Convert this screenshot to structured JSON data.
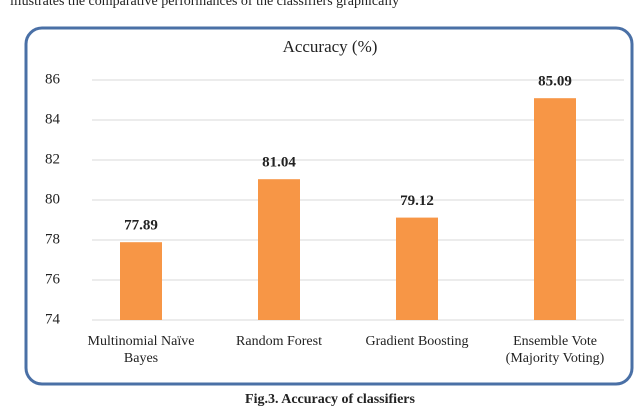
{
  "intro_text": "illustrates the comparative performances of the classifiers graphically",
  "chart_data": {
    "type": "bar",
    "title": "Accuracy (%)",
    "categories": [
      "Multinomial Naïve Bayes",
      "Random Forest",
      "Gradient Boosting",
      "Ensemble Vote (Majority Voting)"
    ],
    "values": [
      77.89,
      81.04,
      79.12,
      85.09
    ],
    "color": "#f79646",
    "ylim": [
      74,
      86
    ],
    "yticks": [
      74,
      76,
      78,
      80,
      82,
      84,
      86
    ],
    "grid": true
  },
  "caption": "Fig.3. Accuracy of classifiers"
}
